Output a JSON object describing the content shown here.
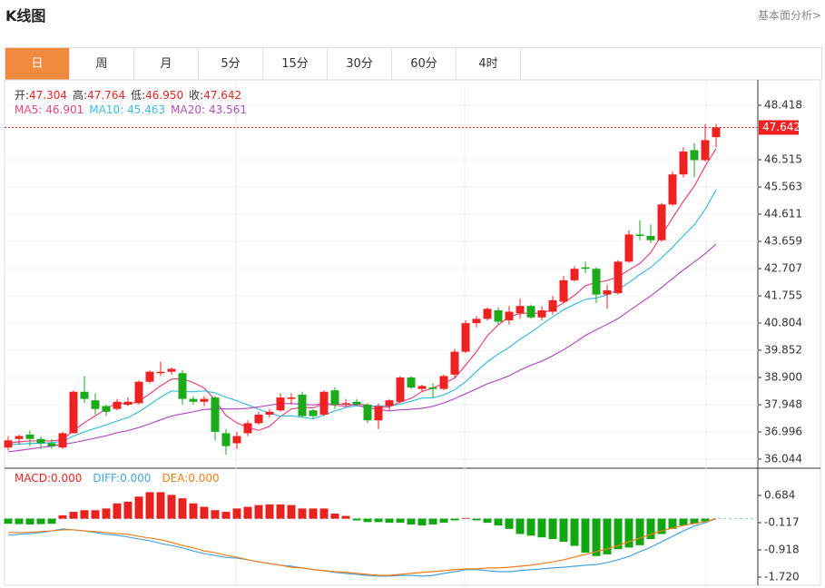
{
  "header": {
    "title": "K线图",
    "link": "基本面分析>"
  },
  "tabs": [
    "日",
    "周",
    "月",
    "5分",
    "15分",
    "30分",
    "60分",
    "4时"
  ],
  "active_tab": 0,
  "chart_data": [
    {
      "type": "candlestick",
      "quote": [
        {
          "name": "开:",
          "value": "47.304"
        },
        {
          "name": "高:",
          "value": "47.764"
        },
        {
          "name": "低:",
          "value": "46.950"
        },
        {
          "name": "收:",
          "value": "47.642"
        }
      ],
      "up_color": "#ee2222",
      "down_color": "#1aaa1a",
      "open": [
        36.45,
        36.75,
        36.9,
        36.75,
        36.6,
        36.45,
        36.95,
        38.4,
        38.1,
        37.9,
        37.8,
        37.95,
        38.0,
        38.75,
        39.05,
        39.1,
        39.05,
        38.15,
        38.05,
        38.2,
        36.95,
        36.6,
        36.95,
        37.3,
        37.6,
        37.75,
        38.15,
        38.3,
        37.75,
        37.6,
        38.45,
        37.95,
        38.05,
        37.95,
        37.4,
        37.9,
        38.05,
        38.9,
        38.5,
        38.55,
        38.5,
        39.0,
        39.8,
        40.8,
        40.95,
        41.25,
        40.9,
        41.15,
        41.4,
        41.0,
        41.2,
        41.55,
        42.3,
        42.75,
        42.7,
        41.8,
        41.85,
        42.95,
        43.9,
        43.85,
        43.7,
        44.95,
        46.0,
        46.85,
        46.5,
        47.304
      ],
      "high": [
        36.85,
        36.9,
        37.05,
        36.85,
        36.75,
        37.0,
        38.45,
        38.95,
        38.35,
        37.95,
        38.15,
        38.2,
        38.8,
        39.15,
        39.45,
        39.25,
        39.15,
        38.25,
        38.25,
        38.25,
        37.1,
        37.0,
        37.4,
        37.7,
        37.8,
        38.35,
        38.35,
        38.4,
        37.8,
        38.45,
        38.55,
        38.15,
        38.15,
        38.0,
        38.0,
        38.15,
        38.95,
        38.95,
        38.65,
        38.7,
        39.0,
        39.9,
        40.9,
        41.05,
        41.35,
        41.35,
        41.4,
        41.65,
        41.45,
        41.4,
        41.75,
        42.45,
        42.8,
        42.95,
        42.75,
        42.15,
        43.0,
        44.05,
        44.4,
        44.25,
        45.0,
        46.1,
        46.95,
        47.1,
        47.76,
        47.764
      ],
      "low": [
        36.35,
        36.55,
        36.5,
        36.4,
        36.4,
        36.4,
        36.95,
        38.0,
        37.6,
        37.55,
        37.75,
        37.9,
        37.95,
        38.7,
        38.95,
        39.0,
        37.95,
        37.95,
        37.9,
        36.7,
        36.2,
        36.4,
        36.85,
        37.25,
        37.5,
        37.7,
        37.95,
        37.5,
        37.45,
        37.55,
        37.8,
        37.9,
        37.9,
        37.3,
        37.1,
        37.75,
        38.0,
        38.5,
        38.4,
        38.2,
        38.45,
        38.85,
        39.75,
        40.65,
        40.9,
        40.75,
        40.75,
        40.95,
        40.95,
        40.9,
        41.1,
        41.5,
        42.25,
        42.55,
        41.5,
        41.3,
        41.8,
        42.9,
        43.7,
        43.6,
        43.65,
        44.9,
        45.9,
        45.9,
        46.45,
        46.95
      ],
      "close": [
        36.7,
        36.85,
        36.75,
        36.6,
        36.5,
        36.95,
        38.4,
        38.15,
        37.8,
        37.7,
        38.05,
        38.05,
        38.75,
        39.1,
        39.1,
        39.2,
        38.15,
        38.05,
        38.15,
        37.0,
        36.5,
        36.85,
        37.3,
        37.6,
        37.7,
        38.2,
        38.2,
        37.55,
        37.55,
        38.4,
        37.95,
        38.0,
        37.95,
        37.4,
        37.9,
        38.1,
        38.9,
        38.55,
        38.6,
        38.5,
        38.95,
        39.8,
        40.8,
        40.95,
        41.3,
        40.85,
        41.2,
        41.4,
        41.0,
        41.25,
        41.6,
        42.3,
        42.7,
        42.7,
        41.8,
        41.95,
        42.95,
        43.9,
        43.85,
        43.7,
        44.95,
        46.0,
        46.8,
        46.5,
        47.2,
        47.642
      ],
      "series": [
        {
          "name": "MA5:",
          "last": 46.901,
          "color": "#e8457a",
          "values": [
            36.6,
            36.65,
            36.68,
            36.68,
            36.68,
            36.73,
            37.04,
            37.32,
            37.56,
            37.8,
            38.02,
            37.95,
            38.07,
            38.33,
            38.61,
            38.84,
            38.86,
            38.72,
            38.53,
            38.11,
            37.57,
            37.31,
            37.16,
            37.05,
            37.19,
            37.53,
            37.8,
            37.85,
            37.84,
            37.98,
            37.93,
            37.89,
            37.97,
            37.94,
            37.84,
            37.87,
            38.05,
            38.17,
            38.41,
            38.53,
            38.7,
            38.88,
            39.33,
            39.8,
            40.36,
            40.74,
            41.02,
            41.14,
            41.15,
            41.14,
            41.29,
            41.51,
            41.77,
            42.11,
            42.22,
            42.29,
            42.42,
            42.66,
            42.89,
            43.27,
            43.87,
            44.48,
            45.06,
            45.59,
            46.29,
            46.901
          ]
        },
        {
          "name": "MA10:",
          "last": 45.463,
          "color": "#3bbde0",
          "values": [
            36.55,
            36.57,
            36.59,
            36.6,
            36.62,
            36.67,
            36.85,
            37.0,
            37.12,
            37.24,
            37.38,
            37.5,
            37.7,
            37.95,
            38.21,
            38.43,
            38.41,
            38.4,
            38.43,
            38.36,
            38.21,
            38.09,
            37.94,
            37.79,
            37.65,
            37.55,
            37.56,
            37.51,
            37.45,
            37.59,
            37.73,
            37.85,
            37.91,
            37.89,
            37.91,
            37.9,
            37.97,
            38.07,
            38.18,
            38.19,
            38.29,
            38.47,
            38.75,
            39.11,
            39.45,
            39.72,
            39.95,
            40.24,
            40.48,
            40.75,
            41.02,
            41.27,
            41.46,
            41.63,
            41.68,
            41.79,
            41.97,
            42.22,
            42.5,
            42.75,
            43.08,
            43.45,
            43.86,
            44.24,
            44.78,
            45.463
          ]
        },
        {
          "name": "MA20:",
          "last": 43.561,
          "color": "#b44fc4",
          "values": [
            36.3,
            36.35,
            36.4,
            36.45,
            36.5,
            36.56,
            36.62,
            36.7,
            36.78,
            36.86,
            36.97,
            37.04,
            37.15,
            37.28,
            37.42,
            37.55,
            37.63,
            37.7,
            37.78,
            37.8,
            37.8,
            37.8,
            37.82,
            37.87,
            37.93,
            37.99,
            37.99,
            37.96,
            37.94,
            37.98,
            37.97,
            37.97,
            37.93,
            37.84,
            37.78,
            37.73,
            37.77,
            37.79,
            37.82,
            37.89,
            38.01,
            38.16,
            38.33,
            38.5,
            38.68,
            38.81,
            38.96,
            39.16,
            39.33,
            39.47,
            39.66,
            39.87,
            40.11,
            40.37,
            40.57,
            40.76,
            40.96,
            41.23,
            41.49,
            41.75,
            42.05,
            42.36,
            42.66,
            42.94,
            43.23,
            43.561
          ]
        }
      ],
      "ylim": [
        35.758,
        49.308
      ],
      "yticks": [
        48.418,
        46.515,
        45.563,
        44.611,
        43.659,
        42.707,
        41.755,
        40.804,
        39.852,
        {
          "value": 38.9,
          "label": "38.900"
        },
        37.948,
        36.996,
        36.044
      ],
      "grid": true
    },
    {
      "type": "macd",
      "histogram": {
        "name": "MACD:",
        "value_label": "0.000",
        "color": "#e8231f",
        "up_color": "#e8231f",
        "down_color": "#11a711",
        "values": [
          -0.15,
          -0.16,
          -0.17,
          -0.16,
          -0.15,
          0.1,
          0.2,
          0.25,
          0.25,
          0.3,
          0.45,
          0.5,
          0.65,
          0.78,
          0.78,
          0.7,
          0.6,
          0.45,
          0.35,
          0.25,
          0.2,
          0.3,
          0.35,
          0.4,
          0.42,
          0.42,
          0.4,
          0.3,
          0.3,
          0.3,
          0.15,
          0.08,
          -0.05,
          -0.1,
          -0.1,
          -0.12,
          -0.12,
          -0.17,
          -0.2,
          -0.17,
          -0.12,
          -0.05,
          0.02,
          -0.05,
          -0.12,
          -0.2,
          -0.3,
          -0.45,
          -0.5,
          -0.55,
          -0.6,
          -0.68,
          -0.8,
          -1.0,
          -1.1,
          -1.05,
          -0.9,
          -0.85,
          -0.78,
          -0.6,
          -0.45,
          -0.3,
          -0.2,
          -0.15,
          -0.08,
          0
        ]
      },
      "series": [
        {
          "name": "DIFF:",
          "value_label": "0.000",
          "color": "#4aa3e0",
          "values": [
            -0.49,
            -0.46,
            -0.44,
            -0.41,
            -0.36,
            -0.3,
            -0.33,
            -0.36,
            -0.41,
            -0.46,
            -0.49,
            -0.54,
            -0.6,
            -0.65,
            -0.73,
            -0.79,
            -0.86,
            -0.95,
            -1.03,
            -1.08,
            -1.14,
            -1.16,
            -1.21,
            -1.27,
            -1.32,
            -1.37,
            -1.4,
            -1.45,
            -1.5,
            -1.53,
            -1.58,
            -1.61,
            -1.64,
            -1.67,
            -1.69,
            -1.69,
            -1.67,
            -1.67,
            -1.69,
            -1.67,
            -1.61,
            -1.56,
            -1.5,
            -1.5,
            -1.53,
            -1.56,
            -1.56,
            -1.53,
            -1.5,
            -1.48,
            -1.45,
            -1.43,
            -1.4,
            -1.37,
            -1.35,
            -1.29,
            -1.21,
            -1.11,
            -0.97,
            -0.84,
            -0.68,
            -0.52,
            -0.36,
            -0.22,
            -0.12,
            0
          ]
        },
        {
          "name": "DEA:",
          "value_label": "0.000",
          "color": "#f07d1a",
          "values": [
            -0.41,
            -0.41,
            -0.4,
            -0.38,
            -0.36,
            -0.33,
            -0.33,
            -0.36,
            -0.38,
            -0.41,
            -0.44,
            -0.46,
            -0.52,
            -0.57,
            -0.62,
            -0.7,
            -0.79,
            -0.86,
            -0.95,
            -1.0,
            -1.08,
            -1.13,
            -1.21,
            -1.27,
            -1.32,
            -1.37,
            -1.43,
            -1.45,
            -1.5,
            -1.53,
            -1.56,
            -1.58,
            -1.61,
            -1.64,
            -1.67,
            -1.67,
            -1.64,
            -1.61,
            -1.58,
            -1.56,
            -1.53,
            -1.5,
            -1.48,
            -1.48,
            -1.45,
            -1.45,
            -1.43,
            -1.4,
            -1.37,
            -1.32,
            -1.27,
            -1.21,
            -1.13,
            -1.05,
            -0.97,
            -0.89,
            -0.79,
            -0.68,
            -0.57,
            -0.46,
            -0.36,
            -0.28,
            -0.2,
            -0.14,
            -0.09,
            0
          ]
        }
      ],
      "ylim": [
        -1.96,
        1.458
      ],
      "yticks": [
        0.684,
        -0.117,
        -0.918,
        {
          "value": -1.72,
          "label": "-1.720"
        }
      ],
      "zero_line": true
    }
  ]
}
